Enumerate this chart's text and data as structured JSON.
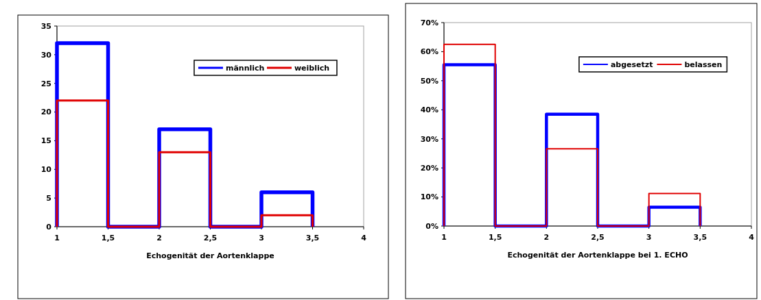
{
  "chart_data": [
    {
      "type": "line",
      "xlabel": "Echogenität der Aortenklappe",
      "x": [
        1,
        1,
        1.5,
        1.5,
        2,
        2,
        2.5,
        2.5,
        3,
        3,
        3.5,
        3.5
      ],
      "xlim": [
        1,
        4
      ],
      "xticks": [
        1,
        {
          "value": 1.5,
          "label": "1,5"
        },
        2,
        {
          "value": 2.5,
          "label": "2,5"
        },
        3,
        {
          "value": 3.5,
          "label": "3,5"
        },
        4
      ],
      "ylim": [
        0,
        35
      ],
      "yticks": [
        0,
        5,
        10,
        15,
        20,
        25,
        30,
        35
      ],
      "legend": "top right",
      "grid": false,
      "marker": "none",
      "line_style": "solid",
      "series": [
        {
          "name": "männlich",
          "color": "#0000ff",
          "values": [
            0,
            32,
            32,
            0,
            0,
            17,
            17,
            0,
            0,
            6,
            6,
            0
          ]
        },
        {
          "name": "weiblich",
          "color": "#e00000",
          "values": [
            0,
            22,
            22,
            0,
            0,
            13,
            13,
            0,
            0,
            2,
            2,
            0
          ]
        }
      ]
    },
    {
      "type": "line",
      "xlabel": "Echogenität der Aortenklappe bei 1. ECHO",
      "x": [
        1,
        1,
        1.5,
        1.5,
        2,
        2,
        2.5,
        2.5,
        3,
        3,
        3.5,
        3.5
      ],
      "xlim": [
        1,
        4
      ],
      "xticks": [
        1,
        {
          "value": 1.5,
          "label": "1,5"
        },
        2,
        {
          "value": 2.5,
          "label": "2,5"
        },
        3,
        {
          "value": 3.5,
          "label": "3,5"
        },
        4
      ],
      "ylim": [
        0,
        70
      ],
      "yticks": [
        {
          "value": 0,
          "label": "0%"
        },
        {
          "value": 10,
          "label": "10%"
        },
        {
          "value": 20,
          "label": "20%"
        },
        {
          "value": 30,
          "label": "30%"
        },
        {
          "value": 40,
          "label": "40%"
        },
        {
          "value": 50,
          "label": "50%"
        },
        {
          "value": 60,
          "label": "60%"
        },
        {
          "value": 70,
          "label": "70%"
        }
      ],
      "legend": "top right",
      "grid": false,
      "marker": "none",
      "line_style": "solid",
      "series": [
        {
          "name": "abgesetzt",
          "color": "#0000ff",
          "values": [
            0,
            55.5,
            55.5,
            0,
            0,
            38.5,
            38.5,
            0,
            0,
            6.5,
            6.5,
            0
          ]
        },
        {
          "name": "belassen",
          "color": "#e00000",
          "values": [
            0,
            62.5,
            62.5,
            0,
            0,
            26.6,
            26.6,
            0,
            0,
            11.2,
            11.2,
            0
          ]
        }
      ]
    }
  ]
}
